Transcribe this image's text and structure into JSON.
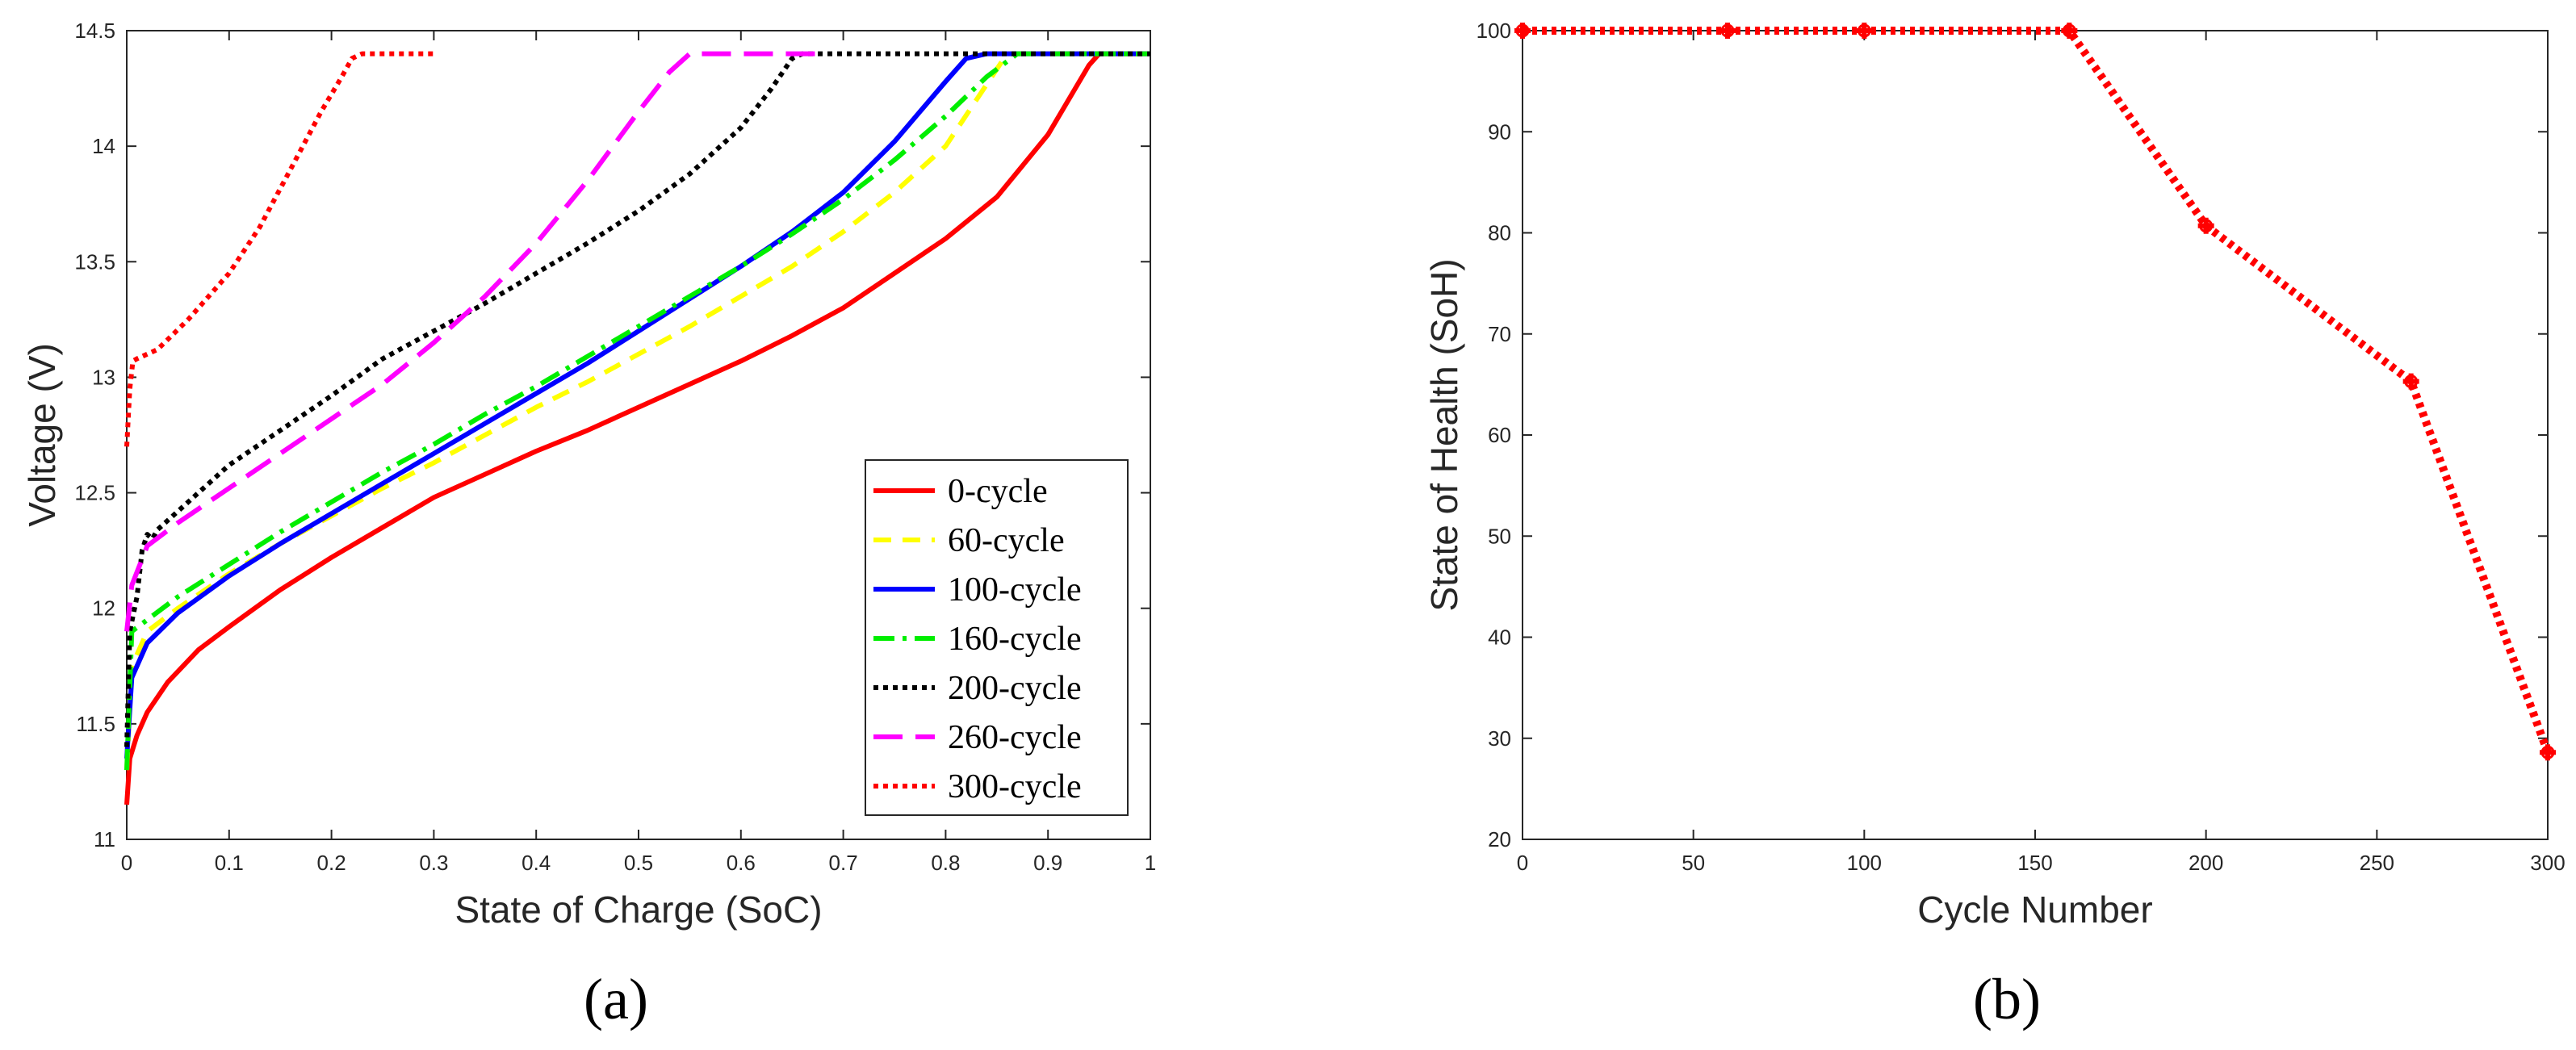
{
  "chart_data": [
    {
      "type": "line",
      "panel_label": "(a)",
      "xlabel": "State of Charge (SoC)",
      "ylabel": "Voltage (V)",
      "xlim": [
        0,
        1
      ],
      "ylim": [
        11,
        14.5
      ],
      "xticks": [
        "0",
        "0.1",
        "0.2",
        "0.3",
        "0.4",
        "0.5",
        "0.6",
        "0.7",
        "0.8",
        "0.9",
        "1"
      ],
      "yticks": [
        "11",
        "11.5",
        "12",
        "12.5",
        "13",
        "13.5",
        "14",
        "14.5"
      ],
      "legend_position": "bottom-right",
      "series": [
        {
          "name": "0-cycle",
          "color": "#ff0000",
          "dash": "solid",
          "x": [
            0,
            0.003,
            0.01,
            0.02,
            0.04,
            0.07,
            0.1,
            0.15,
            0.2,
            0.25,
            0.3,
            0.35,
            0.4,
            0.45,
            0.5,
            0.55,
            0.6,
            0.65,
            0.7,
            0.75,
            0.8,
            0.85,
            0.9,
            0.94,
            0.95,
            1
          ],
          "y": [
            11.15,
            11.35,
            11.45,
            11.55,
            11.68,
            11.82,
            11.92,
            12.08,
            12.22,
            12.35,
            12.48,
            12.58,
            12.68,
            12.77,
            12.87,
            12.97,
            13.07,
            13.18,
            13.3,
            13.45,
            13.6,
            13.78,
            14.05,
            14.35,
            14.4,
            14.4
          ]
        },
        {
          "name": "60-cycle",
          "color": "#ffff00",
          "dash": "dashed",
          "x": [
            0,
            0.005,
            0.02,
            0.05,
            0.1,
            0.15,
            0.2,
            0.25,
            0.3,
            0.35,
            0.4,
            0.45,
            0.5,
            0.55,
            0.6,
            0.65,
            0.7,
            0.75,
            0.8,
            0.83,
            0.86,
            0.87,
            1
          ],
          "y": [
            11.3,
            11.75,
            11.9,
            12.0,
            12.15,
            12.28,
            12.4,
            12.52,
            12.63,
            12.75,
            12.87,
            12.98,
            13.1,
            13.22,
            13.35,
            13.48,
            13.63,
            13.8,
            14.0,
            14.2,
            14.4,
            14.4,
            14.4
          ]
        },
        {
          "name": "100-cycle",
          "color": "#0000ff",
          "dash": "solid",
          "x": [
            0,
            0.005,
            0.02,
            0.05,
            0.1,
            0.15,
            0.2,
            0.25,
            0.3,
            0.35,
            0.4,
            0.45,
            0.5,
            0.55,
            0.6,
            0.65,
            0.7,
            0.75,
            0.8,
            0.82,
            0.84,
            1
          ],
          "y": [
            11.35,
            11.7,
            11.85,
            11.98,
            12.14,
            12.28,
            12.41,
            12.54,
            12.67,
            12.8,
            12.93,
            13.06,
            13.2,
            13.34,
            13.48,
            13.63,
            13.8,
            14.02,
            14.28,
            14.38,
            14.4,
            14.4
          ]
        },
        {
          "name": "160-cycle",
          "color": "#00ee00",
          "dash": "dashdot",
          "x": [
            0,
            0.005,
            0.02,
            0.05,
            0.1,
            0.15,
            0.2,
            0.25,
            0.3,
            0.35,
            0.4,
            0.45,
            0.5,
            0.55,
            0.6,
            0.65,
            0.7,
            0.75,
            0.8,
            0.84,
            0.87,
            1
          ],
          "y": [
            11.3,
            11.9,
            11.95,
            12.05,
            12.19,
            12.33,
            12.46,
            12.59,
            12.71,
            12.84,
            12.96,
            13.09,
            13.22,
            13.35,
            13.48,
            13.62,
            13.77,
            13.94,
            14.13,
            14.3,
            14.4,
            14.4
          ]
        },
        {
          "name": "200-cycle",
          "color": "#000000",
          "dash": "dotted",
          "x": [
            0,
            0.003,
            0.01,
            0.015,
            0.02,
            0.025,
            0.03,
            0.05,
            0.1,
            0.15,
            0.2,
            0.25,
            0.3,
            0.35,
            0.4,
            0.45,
            0.5,
            0.55,
            0.6,
            0.63,
            0.65,
            0.66,
            1
          ],
          "y": [
            11.4,
            11.9,
            12.05,
            12.25,
            12.32,
            12.3,
            12.34,
            12.42,
            12.62,
            12.77,
            12.92,
            13.08,
            13.2,
            13.32,
            13.45,
            13.58,
            13.72,
            13.88,
            14.08,
            14.25,
            14.38,
            14.4,
            14.4
          ]
        },
        {
          "name": "260-cycle",
          "color": "#ff00ff",
          "dash": "longdash",
          "x": [
            0,
            0.005,
            0.02,
            0.05,
            0.1,
            0.15,
            0.2,
            0.25,
            0.3,
            0.35,
            0.4,
            0.45,
            0.5,
            0.53,
            0.55,
            0.68
          ],
          "y": [
            11.9,
            12.1,
            12.27,
            12.37,
            12.52,
            12.67,
            12.82,
            12.97,
            13.15,
            13.35,
            13.58,
            13.85,
            14.15,
            14.32,
            14.4,
            14.4
          ]
        },
        {
          "name": "300-cycle",
          "color": "#ff0000",
          "dash": "dotted",
          "x": [
            0,
            0.003,
            0.006,
            0.01,
            0.03,
            0.06,
            0.1,
            0.13,
            0.16,
            0.19,
            0.21,
            0.22,
            0.23,
            0.3
          ],
          "y": [
            12.7,
            12.95,
            13.07,
            13.08,
            13.12,
            13.25,
            13.45,
            13.65,
            13.9,
            14.15,
            14.3,
            14.38,
            14.4,
            14.4
          ]
        }
      ]
    },
    {
      "type": "line",
      "panel_label": "(b)",
      "xlabel": "Cycle Number",
      "ylabel": "State of Health (SoH)",
      "xlim": [
        0,
        300
      ],
      "ylim": [
        20,
        100
      ],
      "xticks": [
        "0",
        "50",
        "100",
        "150",
        "200",
        "250",
        "300"
      ],
      "yticks": [
        "20",
        "30",
        "40",
        "50",
        "60",
        "70",
        "80",
        "90",
        "100"
      ],
      "series": [
        {
          "name": "SoH",
          "color": "#ff0000",
          "dash": "dotted",
          "marker": "plus",
          "x": [
            0,
            60,
            100,
            160,
            200,
            260,
            300
          ],
          "y": [
            100,
            100,
            100,
            100,
            80.7,
            65.3,
            28.6
          ]
        }
      ]
    }
  ]
}
